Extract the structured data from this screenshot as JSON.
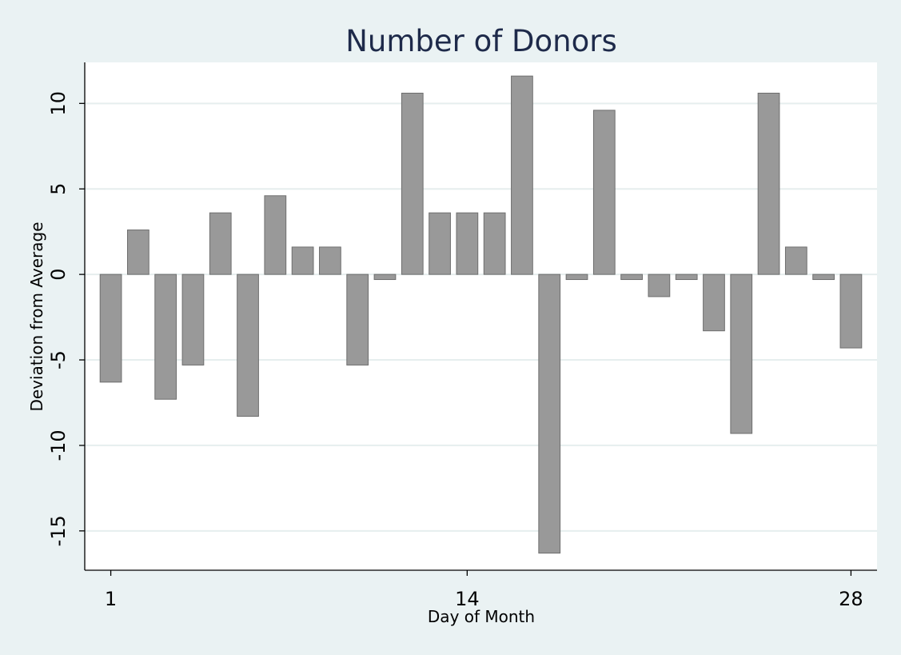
{
  "chart_data": {
    "type": "bar",
    "title": "Number of Donors",
    "xlabel": "Day of Month",
    "ylabel": "Deviation from Average",
    "x": [
      1,
      2,
      3,
      4,
      5,
      6,
      7,
      8,
      9,
      10,
      11,
      12,
      13,
      14,
      15,
      16,
      17,
      18,
      19,
      20,
      21,
      22,
      23,
      24,
      25,
      26,
      27,
      28
    ],
    "values": [
      -6.3,
      2.6,
      -7.3,
      -5.3,
      3.6,
      -8.3,
      4.6,
      1.6,
      1.6,
      -5.3,
      -0.3,
      10.6,
      3.6,
      3.6,
      3.6,
      11.6,
      -16.3,
      -0.3,
      9.6,
      -0.3,
      -1.3,
      -0.3,
      -3.3,
      -9.3,
      10.6,
      1.6,
      -0.3,
      -4.3
    ],
    "x_ticks": [
      "1",
      "14",
      "28"
    ],
    "y_ticks": [
      "-15",
      "-10",
      "-5",
      "0",
      "5",
      "10"
    ],
    "xlim": [
      0.05,
      28.95
    ],
    "ylim": [
      -17.3,
      12.4
    ],
    "grid": true,
    "bar_color": "#999999",
    "bar_edge_color": "#6e6e6e",
    "background_color": "#eaf2f3",
    "plot_background_color": "#ffffff",
    "grid_color": "#e6eeee",
    "title_color": "#1e2a4a"
  }
}
